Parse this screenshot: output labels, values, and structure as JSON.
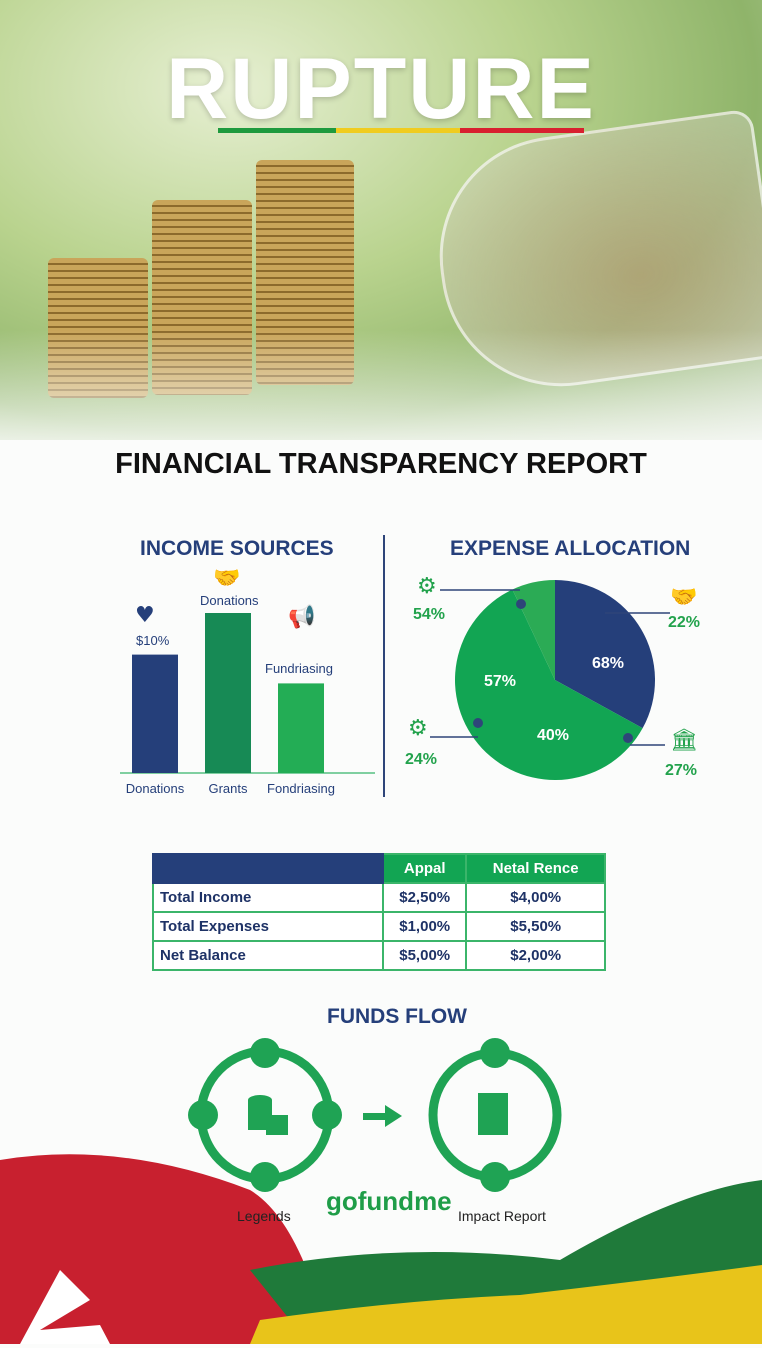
{
  "brand": {
    "name": "RUPTURE",
    "bar_colors": [
      "#1e9a3e",
      "#f0cc1f",
      "#d8202f"
    ]
  },
  "title": "FINANCIAL TRANSPARENCY REPORT",
  "colors": {
    "navy": "#253f7a",
    "green": "#12a553",
    "light_green": "#2bb35a",
    "red": "#c8202f",
    "yellow": "#e8c41a"
  },
  "chart_data": [
    {
      "type": "bar",
      "title": "INCOME SOURCES",
      "categories": [
        "Donations",
        "Grants",
        "Fondriasing"
      ],
      "values": [
        74,
        100,
        56
      ],
      "bar_colors": [
        "#253f7a",
        "#178a55",
        "#23ad55"
      ],
      "annotations": [
        {
          "text": "$10%",
          "icon": "heart-icon"
        },
        {
          "text": "Donations",
          "icon": "handshake-icon"
        },
        {
          "text": "Fundriasing",
          "icon": "megaphone-icon"
        }
      ],
      "grid": false
    },
    {
      "type": "pie",
      "title": "EXPENSE ALLOCATION",
      "slices": [
        {
          "label": "68%",
          "value": 33,
          "color": "#253f7a"
        },
        {
          "label": "40%",
          "value": 0,
          "color": "#12a553"
        },
        {
          "label": "57%",
          "value": 60,
          "color": "#12a553"
        },
        {
          "label": "",
          "value": 7,
          "color": "#2bab55"
        }
      ],
      "callouts": [
        {
          "text": "54%",
          "icon": "gear-icon"
        },
        {
          "text": "22%",
          "icon": "handshake-icon"
        },
        {
          "text": "24%",
          "icon": "gear-icon"
        },
        {
          "text": "27%",
          "icon": "bank-icon"
        }
      ]
    }
  ],
  "table": {
    "headers": [
      "",
      "Appal",
      "Netal Rence"
    ],
    "rows": [
      [
        "Total Income",
        "$2,50%",
        "$4,00%"
      ],
      [
        "Total Expenses",
        "$1,00%",
        "$5,50%"
      ],
      [
        "Net Balance",
        "$5,00%",
        "$2,00%"
      ]
    ]
  },
  "funds_flow": {
    "title": "FUNDS FLOW",
    "left_caption": "Legends",
    "right_caption": "Impact Report",
    "logo": "gofundme"
  }
}
